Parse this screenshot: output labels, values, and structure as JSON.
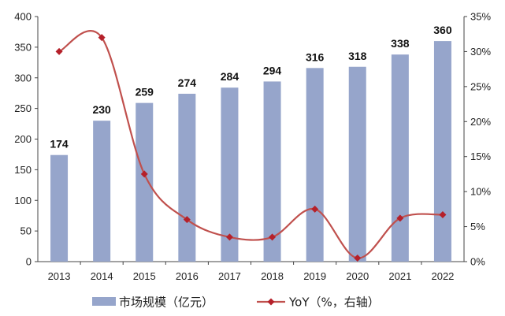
{
  "chart_data": {
    "type": "bar",
    "categories": [
      "2013",
      "2014",
      "2015",
      "2016",
      "2017",
      "2018",
      "2019",
      "2020",
      "2021",
      "2022"
    ],
    "series": [
      {
        "name": "市场规模（亿元）",
        "type": "bar",
        "axis": "left",
        "color": "#96a5cb",
        "values": [
          174,
          230,
          259,
          274,
          284,
          294,
          316,
          318,
          338,
          360
        ]
      },
      {
        "name": "YoY（%，右轴）",
        "type": "line",
        "axis": "right",
        "color": "#c0504d",
        "marker_color": "#b5202a",
        "values": [
          30.0,
          32.0,
          12.5,
          6.0,
          3.5,
          3.5,
          7.5,
          0.5,
          6.2,
          6.7
        ]
      }
    ],
    "left_axis": {
      "min": 0,
      "max": 400,
      "ticks": [
        "0",
        "50",
        "100",
        "150",
        "200",
        "250",
        "300",
        "350",
        "400"
      ]
    },
    "right_axis": {
      "min": 0,
      "max": 35,
      "ticks": [
        "0%",
        "5%",
        "10%",
        "15%",
        "20%",
        "25%",
        "30%",
        "35%"
      ]
    },
    "data_labels": [
      "174",
      "230",
      "259",
      "274",
      "284",
      "294",
      "316",
      "318",
      "338",
      "360"
    ],
    "legend": {
      "position": "bottom",
      "items": [
        {
          "label": "市场规模（亿元）",
          "kind": "bar-swatch"
        },
        {
          "label": "YoY（%，右轴）",
          "kind": "line-marker"
        }
      ]
    },
    "grid": false
  }
}
